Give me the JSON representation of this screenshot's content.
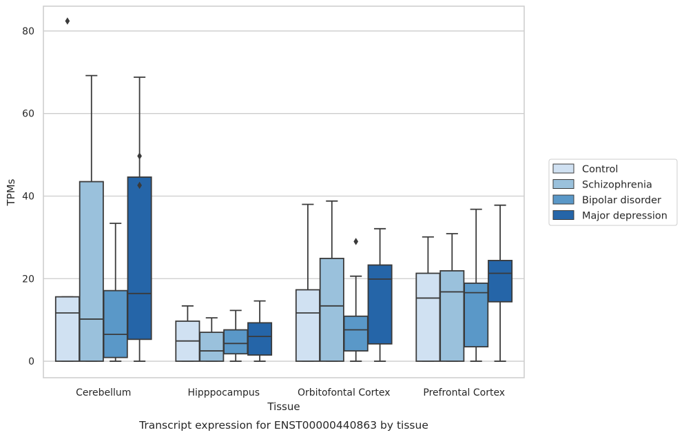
{
  "chart_data": {
    "type": "box",
    "caption": "Transcript expression for ENST00000440863 by tissue",
    "xlabel": "Tissue",
    "ylabel": "TPMs",
    "ylim": [
      -4,
      86
    ],
    "yticks": [
      0,
      20,
      40,
      60,
      80
    ],
    "grid": "horizontal",
    "legend_position": "right",
    "categories": [
      "Cerebellum",
      "Hipppocampus",
      "Orbitofontal Cortex",
      "Prefrontal Cortex"
    ],
    "series": [
      {
        "name": "Control",
        "color": "#d0e1f2",
        "boxes": [
          {
            "min": 0,
            "q1": 0,
            "median": 11.7,
            "q3": 15.6,
            "max": 15.6,
            "outliers": [
              82.4
            ]
          },
          {
            "min": 0,
            "q1": 0,
            "median": 4.9,
            "q3": 9.7,
            "max": 13.4,
            "outliers": []
          },
          {
            "min": 0,
            "q1": 0,
            "median": 11.7,
            "q3": 17.3,
            "max": 38.0,
            "outliers": []
          },
          {
            "min": 0,
            "q1": 0,
            "median": 15.3,
            "q3": 21.3,
            "max": 30.1,
            "outliers": []
          }
        ]
      },
      {
        "name": "Schizophrenia",
        "color": "#9ac1dc",
        "boxes": [
          {
            "min": 0,
            "q1": 0,
            "median": 10.2,
            "q3": 43.5,
            "max": 69.2,
            "outliers": []
          },
          {
            "min": 0,
            "q1": 0,
            "median": 2.5,
            "q3": 7.0,
            "max": 10.5,
            "outliers": []
          },
          {
            "min": 0,
            "q1": 0,
            "median": 13.4,
            "q3": 24.9,
            "max": 38.8,
            "outliers": []
          },
          {
            "min": 0,
            "q1": 0,
            "median": 16.8,
            "q3": 21.9,
            "max": 30.9,
            "outliers": []
          }
        ]
      },
      {
        "name": "Bipolar disorder",
        "color": "#5a98c8",
        "boxes": [
          {
            "min": 0,
            "q1": 0.9,
            "median": 6.5,
            "q3": 17.1,
            "max": 33.4,
            "outliers": []
          },
          {
            "min": 0,
            "q1": 1.8,
            "median": 4.3,
            "q3": 7.6,
            "max": 12.3,
            "outliers": []
          },
          {
            "min": 0,
            "q1": 2.5,
            "median": 7.6,
            "q3": 10.9,
            "max": 20.6,
            "outliers": [
              29.0
            ]
          },
          {
            "min": 0,
            "q1": 3.5,
            "median": 16.6,
            "q3": 18.9,
            "max": 36.8,
            "outliers": []
          }
        ]
      },
      {
        "name": "Major depression",
        "color": "#2565a8",
        "boxes": [
          {
            "min": 0,
            "q1": 5.3,
            "median": 16.4,
            "q3": 44.6,
            "max": 68.8,
            "outliers": [
              42.6,
              49.7
            ]
          },
          {
            "min": 0,
            "q1": 1.5,
            "median": 6.0,
            "q3": 9.3,
            "max": 14.6,
            "outliers": []
          },
          {
            "min": 0,
            "q1": 4.2,
            "median": 19.9,
            "q3": 23.3,
            "max": 32.1,
            "outliers": []
          },
          {
            "min": 0,
            "q1": 14.4,
            "median": 21.3,
            "q3": 24.4,
            "max": 37.8,
            "outliers": []
          }
        ]
      }
    ]
  }
}
